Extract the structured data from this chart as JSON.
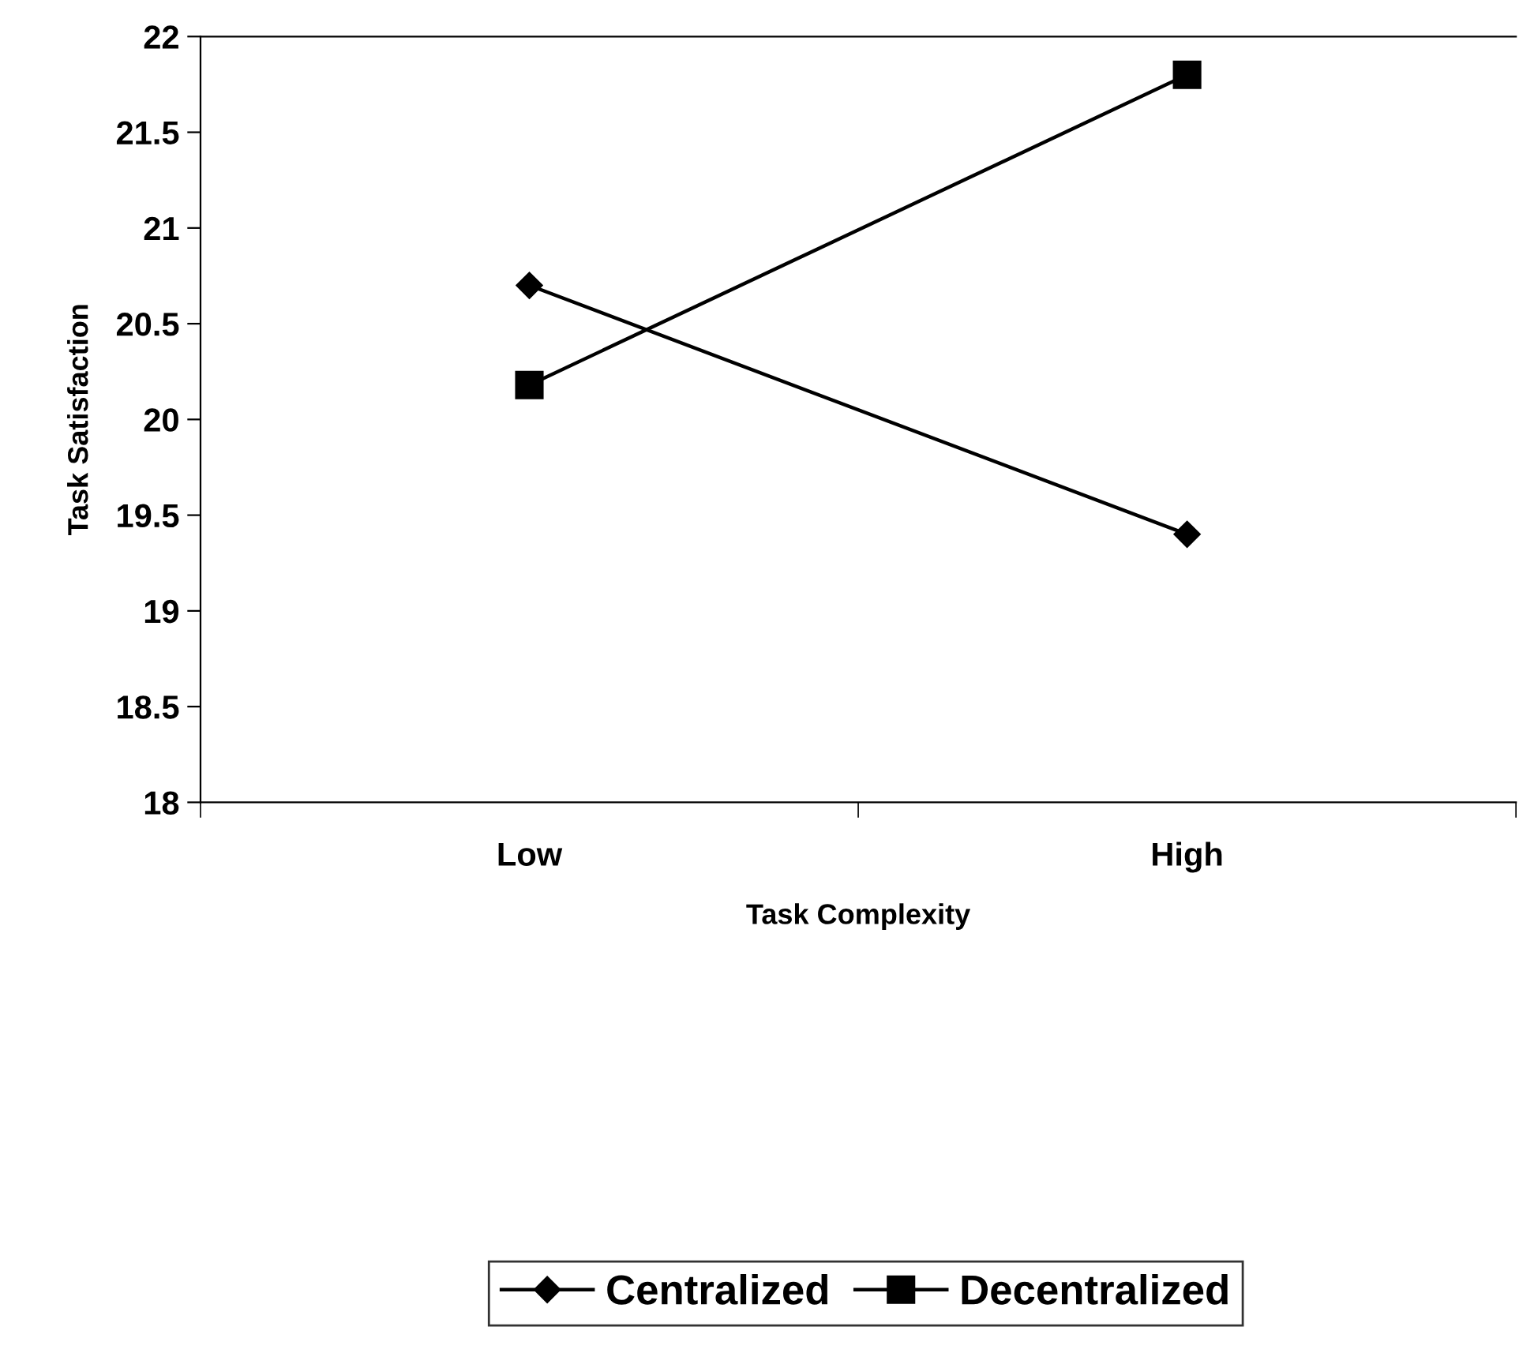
{
  "chart_data": {
    "type": "line",
    "xlabel": "Task Complexity",
    "ylabel": "Task Satisfaction",
    "categories": [
      "Low",
      "High"
    ],
    "series": [
      {
        "name": "Centralized",
        "color": "#000000",
        "marker": "diamond",
        "values": [
          20.7,
          19.4
        ]
      },
      {
        "name": "Decentralized",
        "color": "#000000",
        "marker": "square",
        "values": [
          20.18,
          21.8
        ]
      }
    ],
    "ylim": [
      18,
      22
    ],
    "yticks": [
      18,
      18.5,
      19,
      19.5,
      20,
      20.5,
      21,
      21.5,
      22
    ],
    "grid": false,
    "legend": "bottom",
    "line_style": "solid"
  }
}
